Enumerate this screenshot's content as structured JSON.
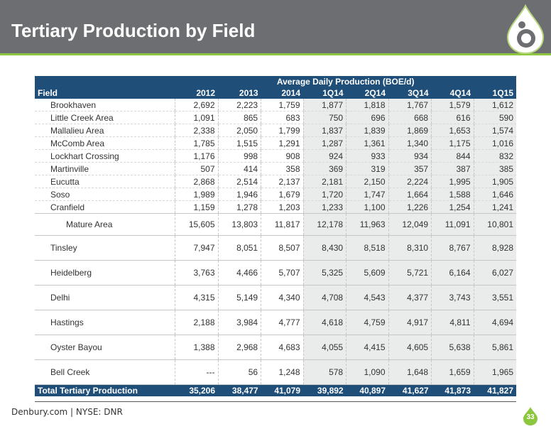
{
  "header": {
    "title": "Tertiary Production by Field"
  },
  "table": {
    "group_header": "Average Daily Production (BOE/d)",
    "columns": [
      "Field",
      "2012",
      "2013",
      "2014",
      "1Q14",
      "2Q14",
      "3Q14",
      "4Q14",
      "1Q15"
    ],
    "rows": [
      {
        "field": "Brookhaven",
        "values": [
          "2,692",
          "2,223",
          "1,759",
          "1,877",
          "1,818",
          "1,767",
          "1,579",
          "1,612"
        ]
      },
      {
        "field": "Little Creek Area",
        "values": [
          "1,091",
          "865",
          "683",
          "750",
          "696",
          "668",
          "616",
          "590"
        ]
      },
      {
        "field": "Mallalieu Area",
        "values": [
          "2,338",
          "2,050",
          "1,799",
          "1,837",
          "1,839",
          "1,869",
          "1,653",
          "1,574"
        ]
      },
      {
        "field": "McComb Area",
        "values": [
          "1,785",
          "1,515",
          "1,291",
          "1,287",
          "1,361",
          "1,340",
          "1,175",
          "1,016"
        ]
      },
      {
        "field": "Lockhart Crossing",
        "values": [
          "1,176",
          "998",
          "908",
          "924",
          "933",
          "934",
          "844",
          "832"
        ]
      },
      {
        "field": "Martinville",
        "values": [
          "507",
          "414",
          "358",
          "369",
          "319",
          "357",
          "387",
          "385"
        ]
      },
      {
        "field": "Eucutta",
        "values": [
          "2,868",
          "2,514",
          "2,137",
          "2,181",
          "2,150",
          "2,224",
          "1,995",
          "1,905"
        ]
      },
      {
        "field": "Soso",
        "values": [
          "1,989",
          "1,946",
          "1,679",
          "1,720",
          "1,747",
          "1,664",
          "1,588",
          "1,646"
        ]
      },
      {
        "field": "Cranfield",
        "values": [
          "1,159",
          "1,278",
          "1,203",
          "1,233",
          "1,100",
          "1,226",
          "1,254",
          "1,241"
        ]
      }
    ],
    "mature": {
      "field": "Mature Area",
      "values": [
        "15,605",
        "13,803",
        "11,817",
        "12,178",
        "11,963",
        "12,049",
        "11,091",
        "10,801"
      ]
    },
    "big_rows": [
      {
        "field": "Tinsley",
        "values": [
          "7,947",
          "8,051",
          "8,507",
          "8,430",
          "8,518",
          "8,310",
          "8,767",
          "8,928"
        ]
      },
      {
        "field": "Heidelberg",
        "values": [
          "3,763",
          "4,466",
          "5,707",
          "5,325",
          "5,609",
          "5,721",
          "6,164",
          "6,027"
        ]
      },
      {
        "field": "Delhi",
        "values": [
          "4,315",
          "5,149",
          "4,340",
          "4,708",
          "4,543",
          "4,377",
          "3,743",
          "3,551"
        ]
      },
      {
        "field": "Hastings",
        "values": [
          "2,188",
          "3,984",
          "4,777",
          "4,618",
          "4,759",
          "4,917",
          "4,811",
          "4,694"
        ]
      },
      {
        "field": "Oyster Bayou",
        "values": [
          "1,388",
          "2,968",
          "4,683",
          "4,055",
          "4,415",
          "4,605",
          "5,638",
          "5,861"
        ]
      },
      {
        "field": "Bell Creek",
        "values": [
          "---",
          "56",
          "1,248",
          "578",
          "1,090",
          "1,648",
          "1,659",
          "1,965"
        ]
      }
    ],
    "total": {
      "field": "Total Tertiary Production",
      "values": [
        "35,206",
        "38,477",
        "41,079",
        "39,892",
        "40,897",
        "41,627",
        "41,873",
        "41,827"
      ]
    }
  },
  "footer": {
    "text": "Denbury.com | NYSE: DNR",
    "page_number": "33"
  },
  "colors": {
    "header_bg": "#6d6e71",
    "accent_green": "#8dc63f",
    "table_header": "#1f4e79"
  },
  "icons": {
    "logo": "droplet-logo-icon",
    "badge": "droplet-badge-icon"
  }
}
